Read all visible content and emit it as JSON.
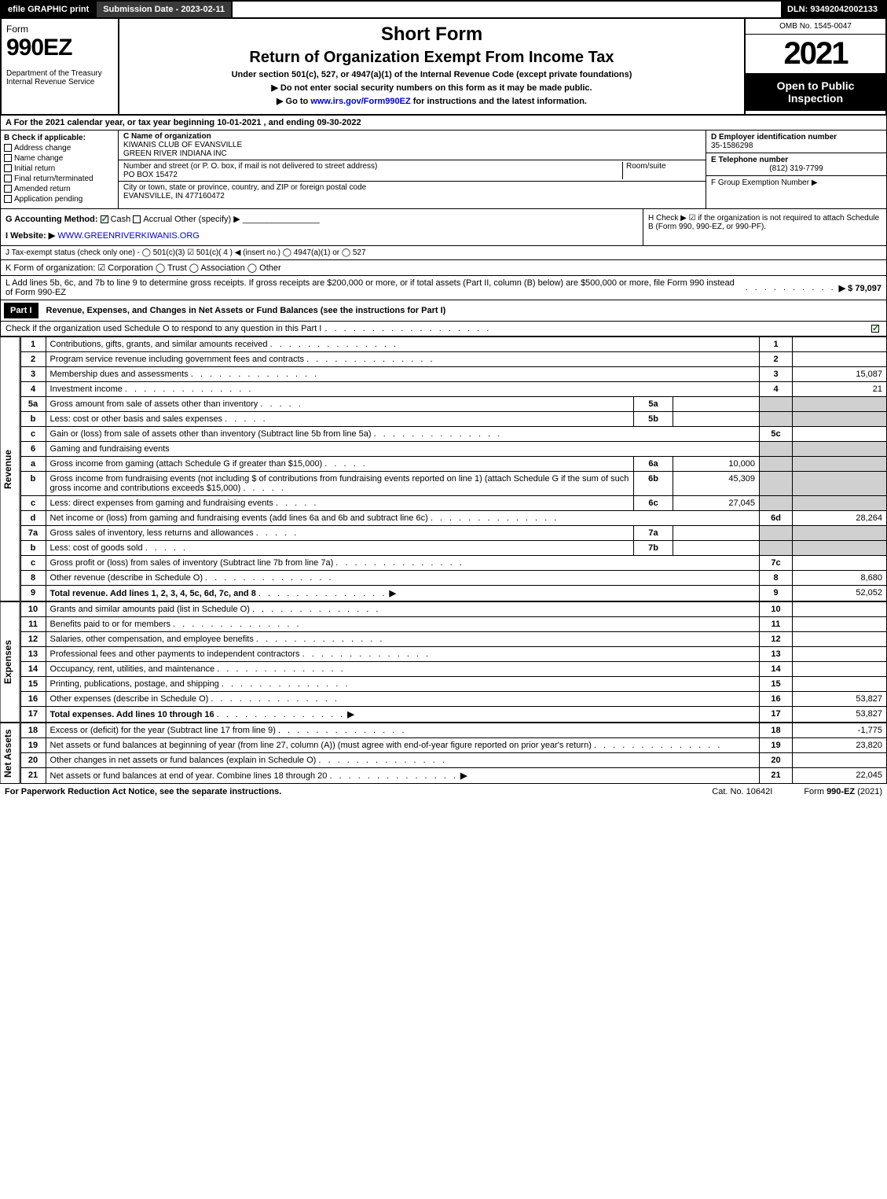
{
  "topbar": {
    "efile": "efile GRAPHIC print",
    "subdate": "Submission Date - 2023-02-11",
    "dln": "DLN: 93492042002133"
  },
  "header": {
    "formword": "Form",
    "formno": "990EZ",
    "dept": "Department of the Treasury\nInternal Revenue Service",
    "short": "Short Form",
    "title": "Return of Organization Exempt From Income Tax",
    "sub1": "Under section 501(c), 527, or 4947(a)(1) of the Internal Revenue Code (except private foundations)",
    "sub2": "▶ Do not enter social security numbers on this form as it may be made public.",
    "sub3": "▶ Go to www.irs.gov/Form990EZ for instructions and the latest information.",
    "omb": "OMB No. 1545-0047",
    "year": "2021",
    "open": "Open to Public Inspection"
  },
  "rowA": "A  For the 2021 calendar year, or tax year beginning 10-01-2021 , and ending 09-30-2022",
  "secB": {
    "title": "B  Check if applicable:",
    "items": [
      "Address change",
      "Name change",
      "Initial return",
      "Final return/terminated",
      "Amended return",
      "Application pending"
    ]
  },
  "secC": {
    "label": "C Name of organization",
    "name": "KIWANIS CLUB OF EVANSVILLE\nGREEN RIVER INDIANA INC",
    "addrLabel": "Number and street (or P. O. box, if mail is not delivered to street address)",
    "room": "Room/suite",
    "addr": "PO BOX 15472",
    "cityLabel": "City or town, state or province, country, and ZIP or foreign postal code",
    "city": "EVANSVILLE, IN  477160472"
  },
  "secD": {
    "einLabel": "D Employer identification number",
    "ein": "35-1586298",
    "telLabel": "E Telephone number",
    "tel": "(812) 319-7799",
    "grpLabel": "F Group Exemption Number  ▶"
  },
  "rowG": {
    "label": "G Accounting Method:",
    "cash": "Cash",
    "accrual": "Accrual",
    "other": "Other (specify) ▶"
  },
  "rowH": {
    "text": "H  Check ▶ ☑ if the organization is not required to attach Schedule B (Form 990, 990-EZ, or 990-PF)."
  },
  "rowI": {
    "label": "I Website: ▶",
    "url": "WWW.GREENRIVERKIWANIS.ORG"
  },
  "rowJ": "J Tax-exempt status (check only one) - ◯ 501(c)(3) ☑ 501(c)( 4 ) ◀ (insert no.) ◯ 4947(a)(1) or ◯ 527",
  "rowK": "K Form of organization:  ☑ Corporation  ◯ Trust  ◯ Association  ◯ Other",
  "rowL": {
    "text": "L Add lines 5b, 6c, and 7b to line 9 to determine gross receipts. If gross receipts are $200,000 or more, or if total assets (Part II, column (B) below) are $500,000 or more, file Form 990 instead of Form 990-EZ",
    "amount": "▶ $ 79,097"
  },
  "part1": {
    "hdr": "Part I",
    "title": "Revenue, Expenses, and Changes in Net Assets or Fund Balances (see the instructions for Part I)",
    "check": "Check if the organization used Schedule O to respond to any question in this Part I"
  },
  "revenue": {
    "label": "Revenue",
    "rows": [
      {
        "n": "1",
        "d": "Contributions, gifts, grants, and similar amounts received",
        "sn": "1",
        "v": ""
      },
      {
        "n": "2",
        "d": "Program service revenue including government fees and contracts",
        "sn": "2",
        "v": ""
      },
      {
        "n": "3",
        "d": "Membership dues and assessments",
        "sn": "3",
        "v": "15,087"
      },
      {
        "n": "4",
        "d": "Investment income",
        "sn": "4",
        "v": "21"
      },
      {
        "n": "5a",
        "d": "Gross amount from sale of assets other than inventory",
        "sub": "5a",
        "sv": "",
        "shade": true
      },
      {
        "n": "b",
        "d": "Less: cost or other basis and sales expenses",
        "sub": "5b",
        "sv": "",
        "shade": true
      },
      {
        "n": "c",
        "d": "Gain or (loss) from sale of assets other than inventory (Subtract line 5b from line 5a)",
        "sn": "5c",
        "v": ""
      },
      {
        "n": "6",
        "d": "Gaming and fundraising events",
        "shade": true,
        "noval": true
      },
      {
        "n": "a",
        "d": "Gross income from gaming (attach Schedule G if greater than $15,000)",
        "sub": "6a",
        "sv": "10,000",
        "shade": true
      },
      {
        "n": "b",
        "d": "Gross income from fundraising events (not including $                of contributions from fundraising events reported on line 1) (attach Schedule G if the sum of such gross income and contributions exceeds $15,000)",
        "sub": "6b",
        "sv": "45,309",
        "shade": true
      },
      {
        "n": "c",
        "d": "Less: direct expenses from gaming and fundraising events",
        "sub": "6c",
        "sv": "27,045",
        "shade": true
      },
      {
        "n": "d",
        "d": "Net income or (loss) from gaming and fundraising events (add lines 6a and 6b and subtract line 6c)",
        "sn": "6d",
        "v": "28,264"
      },
      {
        "n": "7a",
        "d": "Gross sales of inventory, less returns and allowances",
        "sub": "7a",
        "sv": "",
        "shade": true
      },
      {
        "n": "b",
        "d": "Less: cost of goods sold",
        "sub": "7b",
        "sv": "",
        "shade": true
      },
      {
        "n": "c",
        "d": "Gross profit or (loss) from sales of inventory (Subtract line 7b from line 7a)",
        "sn": "7c",
        "v": ""
      },
      {
        "n": "8",
        "d": "Other revenue (describe in Schedule O)",
        "sn": "8",
        "v": "8,680"
      },
      {
        "n": "9",
        "d": "Total revenue. Add lines 1, 2, 3, 4, 5c, 6d, 7c, and 8",
        "sn": "9",
        "v": "52,052",
        "bold": true,
        "arrow": true
      }
    ]
  },
  "expenses": {
    "label": "Expenses",
    "rows": [
      {
        "n": "10",
        "d": "Grants and similar amounts paid (list in Schedule O)",
        "sn": "10",
        "v": ""
      },
      {
        "n": "11",
        "d": "Benefits paid to or for members",
        "sn": "11",
        "v": ""
      },
      {
        "n": "12",
        "d": "Salaries, other compensation, and employee benefits",
        "sn": "12",
        "v": ""
      },
      {
        "n": "13",
        "d": "Professional fees and other payments to independent contractors",
        "sn": "13",
        "v": ""
      },
      {
        "n": "14",
        "d": "Occupancy, rent, utilities, and maintenance",
        "sn": "14",
        "v": ""
      },
      {
        "n": "15",
        "d": "Printing, publications, postage, and shipping",
        "sn": "15",
        "v": ""
      },
      {
        "n": "16",
        "d": "Other expenses (describe in Schedule O)",
        "sn": "16",
        "v": "53,827"
      },
      {
        "n": "17",
        "d": "Total expenses. Add lines 10 through 16",
        "sn": "17",
        "v": "53,827",
        "bold": true,
        "arrow": true
      }
    ]
  },
  "netassets": {
    "label": "Net Assets",
    "rows": [
      {
        "n": "18",
        "d": "Excess or (deficit) for the year (Subtract line 17 from line 9)",
        "sn": "18",
        "v": "-1,775"
      },
      {
        "n": "19",
        "d": "Net assets or fund balances at beginning of year (from line 27, column (A)) (must agree with end-of-year figure reported on prior year's return)",
        "sn": "19",
        "v": "23,820"
      },
      {
        "n": "20",
        "d": "Other changes in net assets or fund balances (explain in Schedule O)",
        "sn": "20",
        "v": ""
      },
      {
        "n": "21",
        "d": "Net assets or fund balances at end of year. Combine lines 18 through 20",
        "sn": "21",
        "v": "22,045",
        "arrow": true
      }
    ]
  },
  "footer": {
    "left": "For Paperwork Reduction Act Notice, see the separate instructions.",
    "cat": "Cat. No. 10642I",
    "form": "Form 990-EZ (2021)"
  }
}
